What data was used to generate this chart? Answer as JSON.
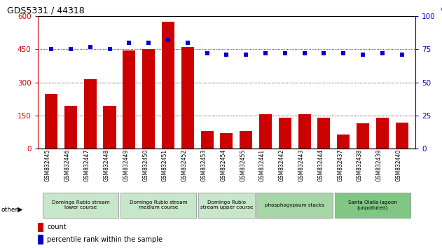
{
  "title": "GDS5331 / 44318",
  "samples": [
    "GSM832445",
    "GSM832446",
    "GSM832447",
    "GSM832448",
    "GSM832449",
    "GSM832450",
    "GSM832451",
    "GSM832452",
    "GSM832453",
    "GSM832454",
    "GSM832455",
    "GSM832441",
    "GSM832442",
    "GSM832443",
    "GSM832444",
    "GSM832437",
    "GSM832438",
    "GSM832439",
    "GSM832440"
  ],
  "counts": [
    248,
    195,
    315,
    195,
    445,
    450,
    575,
    460,
    80,
    70,
    80,
    155,
    140,
    155,
    140,
    65,
    115,
    140,
    120
  ],
  "percentile_ranks": [
    75,
    75,
    77,
    75,
    80,
    80,
    82,
    80,
    72,
    71,
    71,
    72,
    72,
    72,
    72,
    72,
    71,
    72,
    71
  ],
  "groups": [
    {
      "label": "Domingo Rubio stream\nlower course",
      "start": 0,
      "end": 4,
      "color": "#c8e6c9"
    },
    {
      "label": "Domingo Rubio stream\nmedium course",
      "start": 4,
      "end": 8,
      "color": "#c8e6c9"
    },
    {
      "label": "Domingo Rubio\nstream upper course",
      "start": 8,
      "end": 11,
      "color": "#c8e6c9"
    },
    {
      "label": "phosphogypsum stacks",
      "start": 11,
      "end": 15,
      "color": "#a5d6a7"
    },
    {
      "label": "Santa Olalla lagoon\n(unpolluted)",
      "start": 15,
      "end": 19,
      "color": "#81c784"
    }
  ],
  "bar_color": "#cc0000",
  "dot_color": "#0000cc",
  "left_ylim": [
    0,
    600
  ],
  "right_ylim": [
    0,
    100
  ],
  "left_yticks": [
    0,
    150,
    300,
    450,
    600
  ],
  "right_yticks": [
    0,
    25,
    50,
    75,
    100
  ],
  "grid_values": [
    150,
    300,
    450
  ],
  "title_fontsize": 9,
  "axis_label_color_left": "#cc0000",
  "axis_label_color_right": "#0000cc"
}
